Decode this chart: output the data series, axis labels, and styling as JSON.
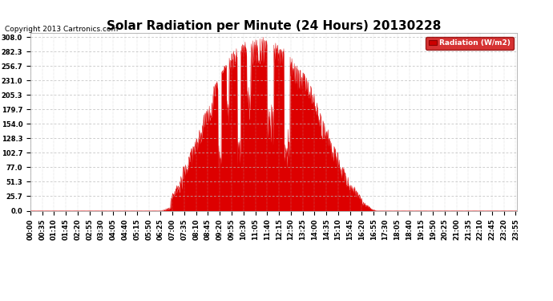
{
  "title": "Solar Radiation per Minute (24 Hours) 20130228",
  "copyright_text": "Copyright 2013 Cartronics.com",
  "legend_label": "Radiation (W/m2)",
  "legend_bg": "#cc0000",
  "legend_text_color": "#ffffff",
  "fill_color": "#dd0000",
  "line_color": "#cc0000",
  "bg_color": "#ffffff",
  "grid_color": "#bbbbbb",
  "yticks": [
    0.0,
    25.7,
    51.3,
    77.0,
    102.7,
    128.3,
    154.0,
    179.7,
    205.3,
    231.0,
    256.7,
    282.3,
    308.0
  ],
  "ylim": [
    0,
    315
  ],
  "title_fontsize": 11,
  "tick_fontsize": 6,
  "copyright_fontsize": 6.5
}
